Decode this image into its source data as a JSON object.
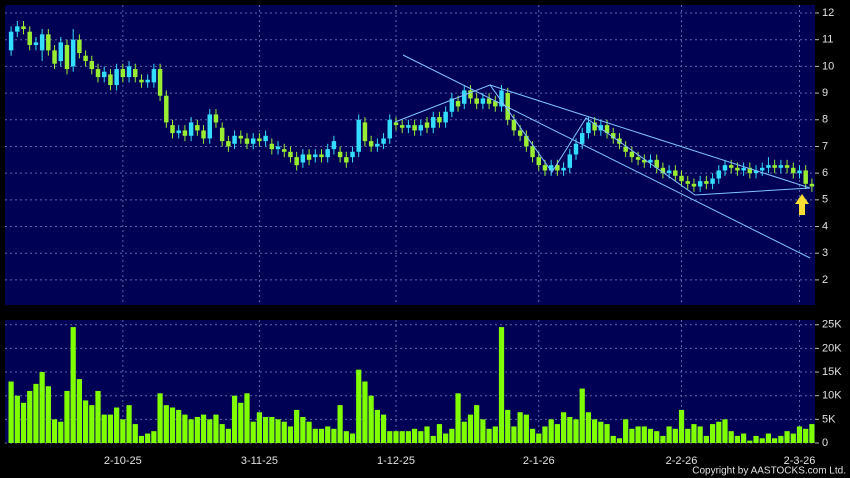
{
  "chart_data": [
    {
      "type": "candlestick",
      "up_color": "#33ddff",
      "down_color": "#99ee33",
      "ylim": [
        1.06,
        12.3
      ],
      "yticks": [
        2,
        3,
        4,
        5,
        6,
        7,
        8,
        9,
        10,
        11,
        12
      ],
      "grid": true,
      "ohlc": [
        [
          10.6,
          11.5,
          10.4,
          11.3
        ],
        [
          11.3,
          11.7,
          11.1,
          11.5
        ],
        [
          11.5,
          11.7,
          11.2,
          11.4
        ],
        [
          11.3,
          11.5,
          10.6,
          10.8
        ],
        [
          10.8,
          11.1,
          10.6,
          10.9
        ],
        [
          10.6,
          11.4,
          10.2,
          11.2
        ],
        [
          11.2,
          11.4,
          10.4,
          10.6
        ],
        [
          10.6,
          10.8,
          9.9,
          10.1
        ],
        [
          10.2,
          11.1,
          10.0,
          10.9
        ],
        [
          10.8,
          11.0,
          9.7,
          9.9
        ],
        [
          10.0,
          11.4,
          9.8,
          11.0
        ],
        [
          11.0,
          11.2,
          10.3,
          10.5
        ],
        [
          10.4,
          10.6,
          10.0,
          10.2
        ],
        [
          10.2,
          10.4,
          9.7,
          9.9
        ],
        [
          9.9,
          10.1,
          9.4,
          9.6
        ],
        [
          9.6,
          10.0,
          9.4,
          9.8
        ],
        [
          9.7,
          9.9,
          9.1,
          9.3
        ],
        [
          9.3,
          10.1,
          9.1,
          9.9
        ],
        [
          9.9,
          10.1,
          9.4,
          9.6
        ],
        [
          9.6,
          10.2,
          9.4,
          10.0
        ],
        [
          9.9,
          10.1,
          9.4,
          9.6
        ],
        [
          9.5,
          9.7,
          9.2,
          9.4
        ],
        [
          9.4,
          9.7,
          9.2,
          9.5
        ],
        [
          9.4,
          10.1,
          9.2,
          9.9
        ],
        [
          9.9,
          10.1,
          8.7,
          8.9
        ],
        [
          8.9,
          9.1,
          7.7,
          7.9
        ],
        [
          7.8,
          8.0,
          7.3,
          7.5
        ],
        [
          7.5,
          7.8,
          7.3,
          7.6
        ],
        [
          7.6,
          7.8,
          7.2,
          7.4
        ],
        [
          7.4,
          8.1,
          7.2,
          7.9
        ],
        [
          7.8,
          8.0,
          7.4,
          7.6
        ],
        [
          7.6,
          7.8,
          7.1,
          7.3
        ],
        [
          7.3,
          8.4,
          7.1,
          8.2
        ],
        [
          8.2,
          8.4,
          7.7,
          7.9
        ],
        [
          7.7,
          7.9,
          7.0,
          7.2
        ],
        [
          7.2,
          7.4,
          6.8,
          7.0
        ],
        [
          7.1,
          7.6,
          6.9,
          7.4
        ],
        [
          7.4,
          7.6,
          7.1,
          7.3
        ],
        [
          7.3,
          7.5,
          6.9,
          7.1
        ],
        [
          7.1,
          7.5,
          6.9,
          7.3
        ],
        [
          7.3,
          7.5,
          7.0,
          7.2
        ],
        [
          7.2,
          7.6,
          7.0,
          7.4
        ],
        [
          7.1,
          7.3,
          6.7,
          6.9
        ],
        [
          6.9,
          7.2,
          6.7,
          7.0
        ],
        [
          6.9,
          7.1,
          6.6,
          6.8
        ],
        [
          6.8,
          7.0,
          6.4,
          6.6
        ],
        [
          6.6,
          6.8,
          6.1,
          6.3
        ],
        [
          6.4,
          6.9,
          6.2,
          6.7
        ],
        [
          6.7,
          6.9,
          6.3,
          6.5
        ],
        [
          6.6,
          6.9,
          6.4,
          6.7
        ],
        [
          6.7,
          6.9,
          6.4,
          6.6
        ],
        [
          6.6,
          7.1,
          6.4,
          6.9
        ],
        [
          6.9,
          7.4,
          6.7,
          7.2
        ],
        [
          6.8,
          7.0,
          6.4,
          6.6
        ],
        [
          6.6,
          6.8,
          6.2,
          6.4
        ],
        [
          6.6,
          7.0,
          6.4,
          6.8
        ],
        [
          6.8,
          8.2,
          6.6,
          8.0
        ],
        [
          7.9,
          8.1,
          7.0,
          7.2
        ],
        [
          7.2,
          7.4,
          6.8,
          7.0
        ],
        [
          7.0,
          7.3,
          6.8,
          7.1
        ],
        [
          7.1,
          7.5,
          6.9,
          7.3
        ],
        [
          7.3,
          8.2,
          7.1,
          8.0
        ],
        [
          7.9,
          8.1,
          7.6,
          7.8
        ],
        [
          7.8,
          8.0,
          7.5,
          7.7
        ],
        [
          7.7,
          8.0,
          7.5,
          7.8
        ],
        [
          7.8,
          8.0,
          7.4,
          7.6
        ],
        [
          7.6,
          8.0,
          7.4,
          7.8
        ],
        [
          7.9,
          8.1,
          7.5,
          7.7
        ],
        [
          7.7,
          8.3,
          7.5,
          8.1
        ],
        [
          8.1,
          8.3,
          7.7,
          7.9
        ],
        [
          7.9,
          8.5,
          7.7,
          8.3
        ],
        [
          8.3,
          9.0,
          8.1,
          8.8
        ],
        [
          8.7,
          8.9,
          8.3,
          8.5
        ],
        [
          8.6,
          9.3,
          8.4,
          9.1
        ],
        [
          9.1,
          9.3,
          8.6,
          8.8
        ],
        [
          8.8,
          9.0,
          8.4,
          8.6
        ],
        [
          8.6,
          9.0,
          8.4,
          8.8
        ],
        [
          8.8,
          9.0,
          8.4,
          8.6
        ],
        [
          8.7,
          8.9,
          8.3,
          8.5
        ],
        [
          8.5,
          9.3,
          8.3,
          9.1
        ],
        [
          9.0,
          9.2,
          7.8,
          8.0
        ],
        [
          8.0,
          8.2,
          7.4,
          7.6
        ],
        [
          7.6,
          7.8,
          7.2,
          7.4
        ],
        [
          7.4,
          7.6,
          6.8,
          7.0
        ],
        [
          7.0,
          7.2,
          6.4,
          6.6
        ],
        [
          6.6,
          6.8,
          6.1,
          6.3
        ],
        [
          6.3,
          6.5,
          5.9,
          6.1
        ],
        [
          6.1,
          6.5,
          5.9,
          6.3
        ],
        [
          6.3,
          6.5,
          5.9,
          6.1
        ],
        [
          6.1,
          6.4,
          5.9,
          6.2
        ],
        [
          6.2,
          6.9,
          6.0,
          6.7
        ],
        [
          6.7,
          7.3,
          6.5,
          7.1
        ],
        [
          7.1,
          7.7,
          6.9,
          7.5
        ],
        [
          7.5,
          8.1,
          7.3,
          7.9
        ],
        [
          7.9,
          8.1,
          7.4,
          7.6
        ],
        [
          7.6,
          8.0,
          7.4,
          7.8
        ],
        [
          7.8,
          8.0,
          7.3,
          7.5
        ],
        [
          7.5,
          7.7,
          7.1,
          7.3
        ],
        [
          7.3,
          7.5,
          6.9,
          7.1
        ],
        [
          7.0,
          7.2,
          6.6,
          6.8
        ],
        [
          6.8,
          7.0,
          6.4,
          6.6
        ],
        [
          6.6,
          6.8,
          6.3,
          6.5
        ],
        [
          6.5,
          6.7,
          6.2,
          6.4
        ],
        [
          6.4,
          6.7,
          6.2,
          6.5
        ],
        [
          6.5,
          6.7,
          6.0,
          6.2
        ],
        [
          6.2,
          6.4,
          5.8,
          6.0
        ],
        [
          6.0,
          6.3,
          5.8,
          6.1
        ],
        [
          6.1,
          6.3,
          5.7,
          5.9
        ],
        [
          5.9,
          6.1,
          5.5,
          5.7
        ],
        [
          5.7,
          5.9,
          5.4,
          5.6
        ],
        [
          5.6,
          5.8,
          5.3,
          5.5
        ],
        [
          5.5,
          5.9,
          5.3,
          5.7
        ],
        [
          5.7,
          5.9,
          5.4,
          5.6
        ],
        [
          5.6,
          6.0,
          5.4,
          5.8
        ],
        [
          5.8,
          6.3,
          5.6,
          6.1
        ],
        [
          6.1,
          6.5,
          5.9,
          6.3
        ],
        [
          6.3,
          6.5,
          6.0,
          6.2
        ],
        [
          6.2,
          6.4,
          5.9,
          6.1
        ],
        [
          6.1,
          6.4,
          5.9,
          6.2
        ],
        [
          6.2,
          6.4,
          5.8,
          6.0
        ],
        [
          6.0,
          6.3,
          5.8,
          6.1
        ],
        [
          6.1,
          6.4,
          5.9,
          6.2
        ],
        [
          6.2,
          6.6,
          6.0,
          6.3
        ],
        [
          6.3,
          6.5,
          6.0,
          6.2
        ],
        [
          6.2,
          6.5,
          6.0,
          6.3
        ],
        [
          6.3,
          6.5,
          6.0,
          6.2
        ],
        [
          6.2,
          6.4,
          5.8,
          6.0
        ],
        [
          6.0,
          6.3,
          5.8,
          6.1
        ],
        [
          6.1,
          6.3,
          5.4,
          5.6
        ],
        [
          5.6,
          5.8,
          5.3,
          5.5
        ]
      ]
    },
    {
      "type": "bar",
      "color": "#7fff00",
      "ylim": [
        0,
        26000
      ],
      "yticks": [
        0,
        {
          "value": 5000,
          "label": "5K"
        },
        {
          "value": 10000,
          "label": "10K"
        },
        {
          "value": 15000,
          "label": "15K"
        },
        {
          "value": 20000,
          "label": "20K"
        },
        {
          "value": 25000,
          "label": "25K"
        }
      ],
      "grid": true,
      "categories": [
        null,
        null,
        null,
        null,
        null,
        null,
        null,
        null,
        null,
        null,
        null,
        null,
        null,
        null,
        null,
        null,
        null,
        null,
        "2-10-25",
        null,
        null,
        null,
        null,
        null,
        null,
        null,
        null,
        null,
        null,
        null,
        null,
        null,
        null,
        null,
        null,
        null,
        null,
        null,
        null,
        null,
        "3-11-25",
        null,
        null,
        null,
        null,
        null,
        null,
        null,
        null,
        null,
        null,
        null,
        null,
        null,
        null,
        null,
        null,
        null,
        null,
        null,
        null,
        null,
        "1-12-25",
        null,
        null,
        null,
        null,
        null,
        null,
        null,
        null,
        null,
        null,
        null,
        null,
        null,
        null,
        null,
        null,
        null,
        null,
        null,
        null,
        null,
        null,
        "2-1-26",
        null,
        null,
        null,
        null,
        null,
        null,
        null,
        null,
        null,
        null,
        null,
        null,
        null,
        null,
        null,
        null,
        null,
        null,
        null,
        null,
        null,
        null,
        "2-2-26",
        null,
        null,
        null,
        null,
        null,
        null,
        null,
        null,
        null,
        null,
        null,
        null,
        null,
        null,
        null,
        null,
        null,
        null,
        "2-3-26",
        null,
        null
      ],
      "values": [
        13000,
        10000,
        8500,
        11000,
        12500,
        15000,
        12000,
        5000,
        4500,
        11000,
        24500,
        13500,
        9000,
        8000,
        11000,
        6000,
        6000,
        7500,
        5000,
        8000,
        4000,
        1500,
        2000,
        2500,
        10500,
        8000,
        7500,
        7000,
        6000,
        5000,
        5500,
        6000,
        5000,
        6000,
        4000,
        3000,
        10000,
        8500,
        10500,
        4500,
        6500,
        5500,
        5500,
        5000,
        4500,
        3500,
        7000,
        5500,
        4500,
        3000,
        3000,
        3500,
        3000,
        8000,
        2500,
        2000,
        15500,
        13000,
        10000,
        7000,
        6000,
        2500,
        2500,
        2500,
        2500,
        3000,
        2500,
        3500,
        1500,
        4000,
        2000,
        3000,
        10500,
        4500,
        6000,
        8000,
        5000,
        3000,
        3500,
        24500,
        7000,
        3500,
        6500,
        6000,
        3000,
        2000,
        3500,
        5000,
        4000,
        6500,
        5500,
        5000,
        11500,
        6500,
        5000,
        4500,
        4000,
        1500,
        1000,
        5000,
        3000,
        3500,
        3500,
        3000,
        2500,
        1500,
        3500,
        3000,
        7000,
        3000,
        4000,
        3500,
        1500,
        4000,
        4500,
        5000,
        2500,
        1500,
        2000,
        500,
        1500,
        1000,
        2000,
        1000,
        1500,
        2500,
        2000,
        3500,
        3000,
        4000
      ]
    }
  ],
  "copyright": "Copyright by AASTOCKS.com Ltd."
}
